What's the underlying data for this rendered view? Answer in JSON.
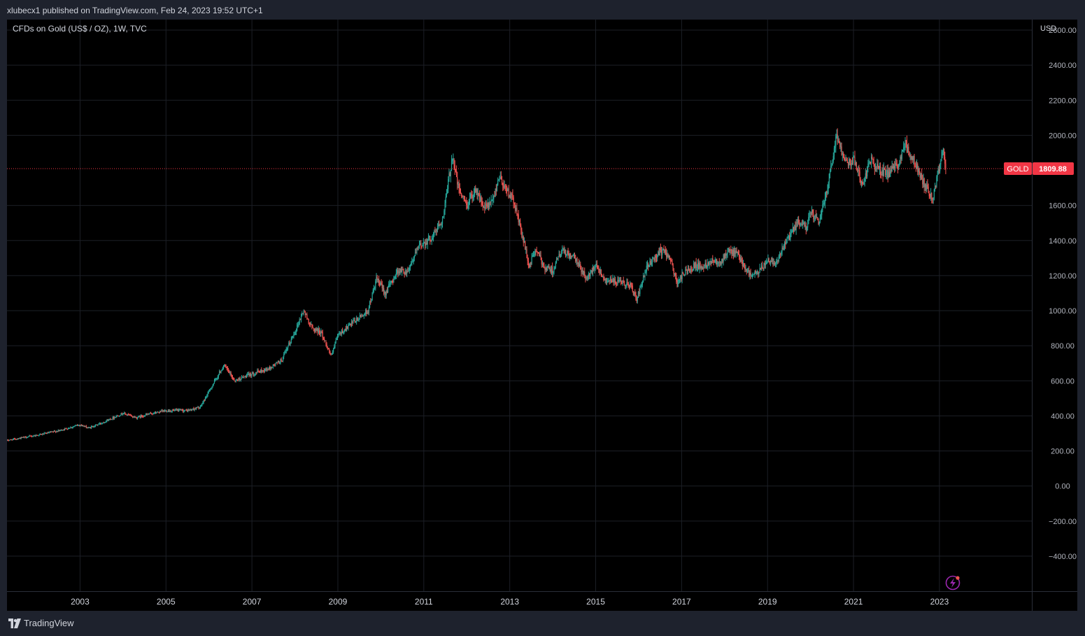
{
  "header": {
    "published_by": "xlubecx1 published on TradingView.com, Feb 24, 2023 19:52 UTC+1"
  },
  "footer": {
    "brand": "TradingView"
  },
  "colors": {
    "up": "#26a69a",
    "down": "#ef5350",
    "background": "#000000",
    "grid": "#1c1f26",
    "axis_text": "#b2b5be",
    "price_line": "#f23645",
    "badge_bg": "#f23645",
    "alert_icon": "#9c27b0"
  },
  "icons": {
    "alert": "lightning-bolt-icon",
    "brand": "tradingview-logo-icon"
  },
  "chart_data": {
    "type": "candlestick",
    "symbol_label": "CFDs on Gold (US$ / OZ), 1W, TVC",
    "currency_label": "USD",
    "symbol": "GOLD",
    "last_price_label": "1809.88",
    "last_price": 1809.88,
    "ylim": [
      -600,
      2660
    ],
    "y_ticks": [
      "2600.00",
      "2400.00",
      "2200.00",
      "2000.00",
      "1600.00",
      "1400.00",
      "1200.00",
      "1000.00",
      "800.00",
      "600.00",
      "400.00",
      "200.00",
      "0.00",
      "−200.00",
      "−400.00"
    ],
    "y_tick_values": [
      2600,
      2400,
      2200,
      2000,
      1600,
      1400,
      1200,
      1000,
      800,
      600,
      400,
      200,
      0,
      -200,
      -400
    ],
    "x_range": [
      2001.3,
      2025.15
    ],
    "x_ticks": [
      "2003",
      "2005",
      "2007",
      "2009",
      "2011",
      "2013",
      "2015",
      "2017",
      "2019",
      "2021",
      "2023"
    ],
    "x_tick_values": [
      2003,
      2005,
      2007,
      2009,
      2011,
      2013,
      2015,
      2017,
      2019,
      2021,
      2023
    ],
    "series": [
      {
        "interval": "1W",
        "points": [
          [
            2001.3,
            260
          ],
          [
            2002.0,
            290
          ],
          [
            2002.5,
            315
          ],
          [
            2003.0,
            350
          ],
          [
            2003.2,
            330
          ],
          [
            2003.5,
            360
          ],
          [
            2004.0,
            415
          ],
          [
            2004.3,
            390
          ],
          [
            2004.6,
            410
          ],
          [
            2005.0,
            430
          ],
          [
            2005.5,
            430
          ],
          [
            2005.8,
            450
          ],
          [
            2006.0,
            540
          ],
          [
            2006.35,
            690
          ],
          [
            2006.6,
            600
          ],
          [
            2007.0,
            640
          ],
          [
            2007.4,
            670
          ],
          [
            2007.7,
            720
          ],
          [
            2008.0,
            880
          ],
          [
            2008.2,
            1000
          ],
          [
            2008.4,
            900
          ],
          [
            2008.6,
            880
          ],
          [
            2008.85,
            740
          ],
          [
            2009.0,
            860
          ],
          [
            2009.3,
            920
          ],
          [
            2009.7,
            1000
          ],
          [
            2009.9,
            1180
          ],
          [
            2010.1,
            1100
          ],
          [
            2010.4,
            1230
          ],
          [
            2010.6,
            1220
          ],
          [
            2010.9,
            1370
          ],
          [
            2011.2,
            1420
          ],
          [
            2011.45,
            1530
          ],
          [
            2011.6,
            1780
          ],
          [
            2011.67,
            1890
          ],
          [
            2011.8,
            1700
          ],
          [
            2012.0,
            1600
          ],
          [
            2012.2,
            1700
          ],
          [
            2012.4,
            1580
          ],
          [
            2012.6,
            1620
          ],
          [
            2012.75,
            1770
          ],
          [
            2012.9,
            1700
          ],
          [
            2013.1,
            1620
          ],
          [
            2013.3,
            1420
          ],
          [
            2013.45,
            1250
          ],
          [
            2013.6,
            1350
          ],
          [
            2013.8,
            1250
          ],
          [
            2014.0,
            1230
          ],
          [
            2014.2,
            1340
          ],
          [
            2014.5,
            1300
          ],
          [
            2014.8,
            1180
          ],
          [
            2015.0,
            1270
          ],
          [
            2015.2,
            1180
          ],
          [
            2015.5,
            1160
          ],
          [
            2015.8,
            1150
          ],
          [
            2015.95,
            1060
          ],
          [
            2016.2,
            1250
          ],
          [
            2016.5,
            1340
          ],
          [
            2016.7,
            1320
          ],
          [
            2016.9,
            1150
          ],
          [
            2017.0,
            1200
          ],
          [
            2017.3,
            1260
          ],
          [
            2017.5,
            1250
          ],
          [
            2017.7,
            1290
          ],
          [
            2017.9,
            1280
          ],
          [
            2018.1,
            1340
          ],
          [
            2018.3,
            1320
          ],
          [
            2018.6,
            1200
          ],
          [
            2018.8,
            1220
          ],
          [
            2019.0,
            1290
          ],
          [
            2019.2,
            1280
          ],
          [
            2019.5,
            1420
          ],
          [
            2019.7,
            1500
          ],
          [
            2019.9,
            1480
          ],
          [
            2020.0,
            1560
          ],
          [
            2020.2,
            1500
          ],
          [
            2020.4,
            1720
          ],
          [
            2020.6,
            2000
          ],
          [
            2020.75,
            1900
          ],
          [
            2020.9,
            1840
          ],
          [
            2021.0,
            1870
          ],
          [
            2021.2,
            1720
          ],
          [
            2021.4,
            1860
          ],
          [
            2021.6,
            1800
          ],
          [
            2021.8,
            1780
          ],
          [
            2022.0,
            1820
          ],
          [
            2022.2,
            1950
          ],
          [
            2022.35,
            1880
          ],
          [
            2022.5,
            1800
          ],
          [
            2022.7,
            1700
          ],
          [
            2022.85,
            1640
          ],
          [
            2023.0,
            1830
          ],
          [
            2023.08,
            1930
          ],
          [
            2023.15,
            1809.88
          ]
        ]
      }
    ]
  }
}
